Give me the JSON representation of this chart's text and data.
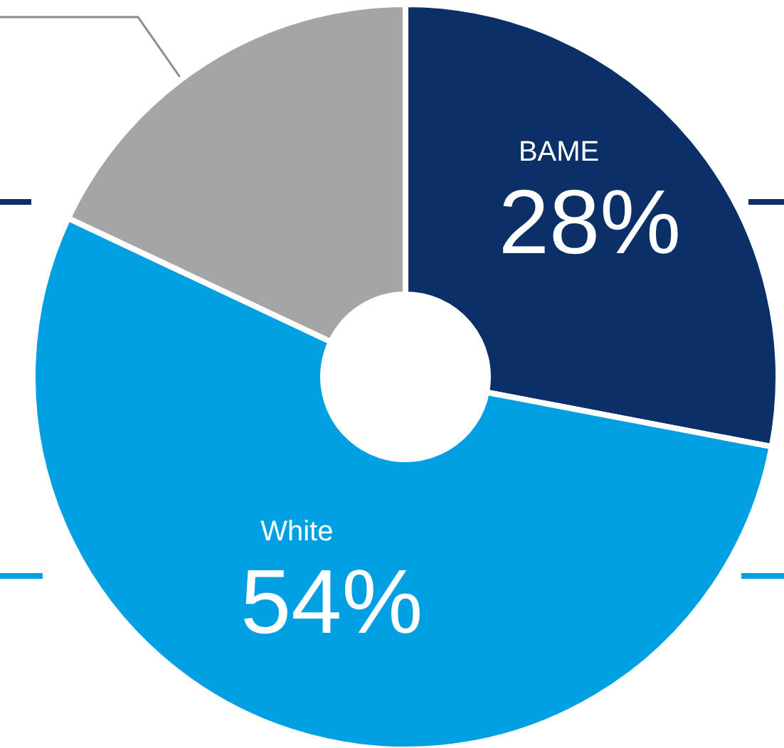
{
  "chart_data": {
    "type": "donut",
    "categories": [
      "BAME",
      "White",
      null
    ],
    "values": [
      28,
      54,
      18
    ],
    "colors": [
      "#0b3068",
      "#00a0e3",
      "#a5a5a5"
    ],
    "value_labels": [
      "28%",
      "54%",
      null
    ]
  }
}
